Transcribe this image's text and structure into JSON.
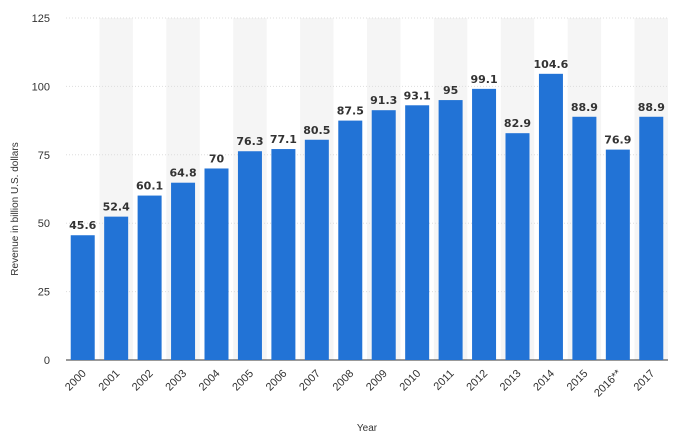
{
  "chart_data": {
    "type": "bar",
    "title": "",
    "xlabel": "Year",
    "ylabel": "Revenue in billion U.S. dollars",
    "categories": [
      "2000",
      "2001",
      "2002",
      "2003",
      "2004",
      "2005",
      "2006",
      "2007",
      "2008",
      "2009",
      "2010",
      "2011",
      "2012",
      "2013",
      "2014",
      "2015",
      "2016**",
      "2017"
    ],
    "values": [
      45.6,
      52.4,
      60.1,
      64.8,
      70,
      76.3,
      77.1,
      80.5,
      87.5,
      91.3,
      93.1,
      95,
      99.1,
      82.9,
      104.6,
      88.9,
      76.9,
      88.9
    ],
    "value_labels": [
      "45.6",
      "52.4",
      "60.1",
      "64.8",
      "70",
      "76.3",
      "77.1",
      "80.5",
      "87.5",
      "91.3",
      "93.1",
      "95",
      "99.1",
      "82.9",
      "104.6",
      "88.9",
      "76.9",
      "88.9"
    ],
    "y_ticks": [
      "0",
      "25",
      "50",
      "75",
      "100",
      "125"
    ],
    "ylim": [
      0,
      125
    ],
    "grid": true,
    "legend": "none",
    "bar_color": "#2273d6",
    "band_color": "#f5f5f5",
    "grid_color": "#dddddd"
  }
}
